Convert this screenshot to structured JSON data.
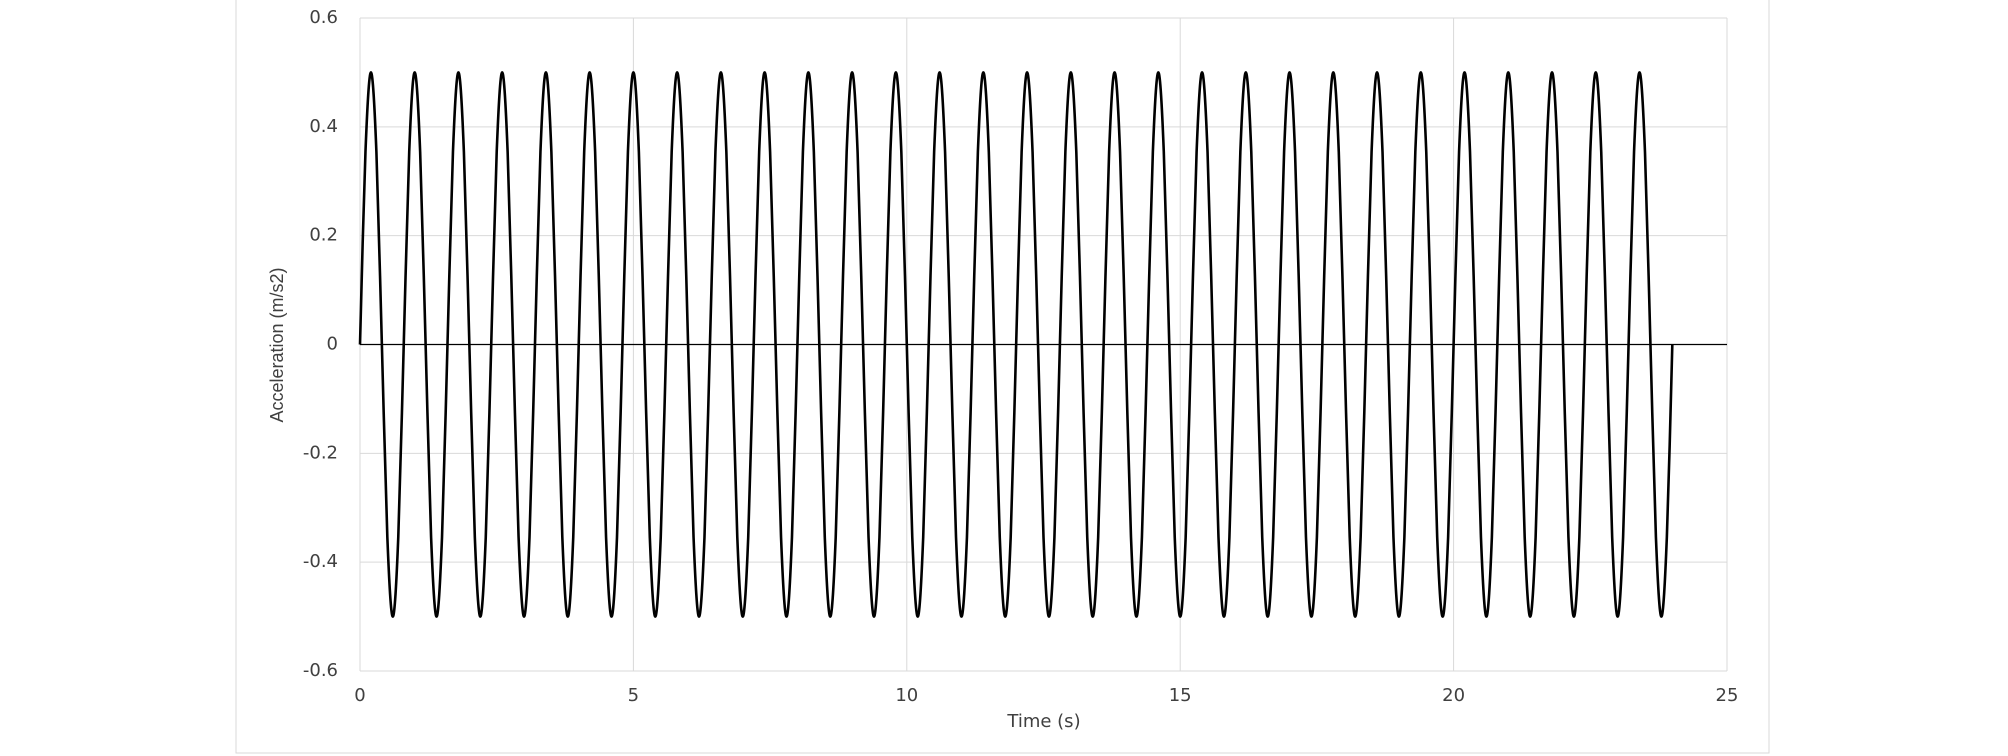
{
  "chart_data": {
    "type": "line",
    "x_label": "Time (s)",
    "y_label": "Acceleration (m/s2)",
    "xlim": [
      0,
      25
    ],
    "ylim": [
      -0.6,
      0.6
    ],
    "xticks": [
      0,
      5,
      10,
      15,
      20,
      25
    ],
    "yticks": [
      -0.6,
      -0.4,
      -0.2,
      0,
      0.2,
      0.4,
      0.6
    ],
    "grid": true,
    "color": "#000000",
    "x": [
      0,
      0.1,
      0.2,
      0.3,
      0.4,
      0.5,
      0.6,
      0.7,
      0.8,
      0.9,
      1,
      1.1,
      1.2,
      1.3,
      1.4,
      1.5,
      1.6,
      1.7,
      1.8,
      1.9,
      2,
      2.1,
      2.2,
      2.3,
      2.4,
      2.5,
      2.6,
      2.7,
      2.8,
      2.9,
      3,
      3.1,
      3.2,
      3.3,
      3.4,
      3.5,
      3.6,
      3.7,
      3.8,
      3.9,
      4,
      4.1,
      4.2,
      4.3,
      4.4,
      4.5,
      4.6,
      4.7,
      4.8,
      4.9,
      5,
      5.1,
      5.2,
      5.3,
      5.4,
      5.5,
      5.6,
      5.7,
      5.8,
      5.9,
      6,
      6.1,
      6.2,
      6.3,
      6.4,
      6.5,
      6.6,
      6.7,
      6.8,
      6.9,
      7,
      7.1,
      7.2,
      7.3,
      7.4,
      7.5,
      7.6,
      7.7,
      7.8,
      7.9,
      8,
      8.1,
      8.2,
      8.3,
      8.4,
      8.5,
      8.6,
      8.7,
      8.8,
      8.9,
      9,
      9.1,
      9.2,
      9.3,
      9.4,
      9.5,
      9.6,
      9.7,
      9.8,
      9.9,
      10,
      10.1,
      10.2,
      10.3,
      10.4,
      10.5,
      10.6,
      10.7,
      10.8,
      10.9,
      11,
      11.1,
      11.2,
      11.3,
      11.4,
      11.5,
      11.6,
      11.7,
      11.8,
      11.9,
      12,
      12.1,
      12.2,
      12.3,
      12.4,
      12.5,
      12.6,
      12.7,
      12.8,
      12.9,
      13,
      13.1,
      13.2,
      13.3,
      13.4,
      13.5,
      13.6,
      13.7,
      13.8,
      13.9,
      14,
      14.1,
      14.2,
      14.3,
      14.4,
      14.5,
      14.6,
      14.7,
      14.8,
      14.9,
      15,
      15.1,
      15.2,
      15.3,
      15.4,
      15.5,
      15.6,
      15.7,
      15.8,
      15.9,
      16,
      16.1,
      16.2,
      16.3,
      16.4,
      16.5,
      16.6,
      16.7,
      16.8,
      16.9,
      17,
      17.1,
      17.2,
      17.3,
      17.4,
      17.5,
      17.6,
      17.7,
      17.8,
      17.9,
      18,
      18.1,
      18.2,
      18.3,
      18.4,
      18.5,
      18.6,
      18.7,
      18.8,
      18.9,
      19,
      19.1,
      19.2,
      19.3,
      19.4,
      19.5,
      19.6,
      19.7,
      19.8,
      19.9,
      20,
      20.1,
      20.2,
      20.3,
      20.4,
      20.5,
      20.6,
      20.7,
      20.8,
      20.9,
      21,
      21.1,
      21.2,
      21.3,
      21.4,
      21.5,
      21.6,
      21.7,
      21.8,
      21.9,
      22,
      22.1,
      22.2,
      22.3,
      22.4,
      22.5,
      22.6,
      22.7,
      22.8,
      22.9,
      23,
      23.1,
      23.2,
      23.3,
      23.4,
      23.5,
      23.6,
      23.7,
      23.8,
      23.9,
      24
    ],
    "values": [
      0,
      0.354,
      0.5,
      0.354,
      0,
      -0.354,
      -0.5,
      -0.354,
      0,
      0.354,
      0.5,
      0.354,
      0,
      -0.354,
      -0.5,
      -0.354,
      0,
      0.354,
      0.5,
      0.354,
      0,
      -0.354,
      -0.5,
      -0.354,
      0,
      0.354,
      0.5,
      0.354,
      0,
      -0.354,
      -0.5,
      -0.354,
      0,
      0.354,
      0.5,
      0.354,
      0,
      -0.354,
      -0.5,
      -0.354,
      0,
      0.354,
      0.5,
      0.354,
      0,
      -0.354,
      -0.5,
      -0.354,
      0,
      0.354,
      0.5,
      0.354,
      0,
      -0.354,
      -0.5,
      -0.354,
      0,
      0.354,
      0.5,
      0.354,
      0,
      -0.354,
      -0.5,
      -0.354,
      0,
      0.354,
      0.5,
      0.354,
      0,
      -0.354,
      -0.5,
      -0.354,
      0,
      0.354,
      0.5,
      0.354,
      0,
      -0.354,
      -0.5,
      -0.354,
      0,
      0.354,
      0.5,
      0.354,
      0,
      -0.354,
      -0.5,
      -0.354,
      0,
      0.354,
      0.5,
      0.354,
      0,
      -0.354,
      -0.5,
      -0.354,
      0,
      0.354,
      0.5,
      0.354,
      0,
      -0.354,
      -0.5,
      -0.354,
      0,
      0.354,
      0.5,
      0.354,
      0,
      -0.354,
      -0.5,
      -0.354,
      0,
      0.354,
      0.5,
      0.354,
      0,
      -0.354,
      -0.5,
      -0.354,
      0,
      0.354,
      0.5,
      0.354,
      0,
      -0.354,
      -0.5,
      -0.354,
      0,
      0.354,
      0.5,
      0.354,
      0,
      -0.354,
      -0.5,
      -0.354,
      0,
      0.354,
      0.5,
      0.354,
      0,
      -0.354,
      -0.5,
      -0.354,
      0,
      0.354,
      0.5,
      0.354,
      0,
      -0.354,
      -0.5,
      -0.354,
      0,
      0.354,
      0.5,
      0.354,
      0,
      -0.354,
      -0.5,
      -0.354,
      0,
      0.354,
      0.5,
      0.354,
      0,
      -0.354,
      -0.5,
      -0.354,
      0,
      0.354,
      0.5,
      0.354,
      0,
      -0.354,
      -0.5,
      -0.354,
      0,
      0.354,
      0.5,
      0.354,
      0,
      -0.354,
      -0.5,
      -0.354,
      0,
      0.354,
      0.5,
      0.354,
      0,
      -0.354,
      -0.5,
      -0.354,
      0,
      0.354,
      0.5,
      0.354,
      0,
      -0.354,
      -0.5,
      -0.354,
      0,
      0.354,
      0.5,
      0.354,
      0,
      -0.354,
      -0.5,
      -0.354,
      0,
      0.354,
      0.5,
      0.354,
      0,
      -0.354,
      -0.5,
      -0.354,
      0,
      0.354,
      0.5,
      0.354,
      0,
      -0.354,
      -0.5,
      -0.354,
      0,
      0.354,
      0.5,
      0.354,
      0,
      -0.354,
      -0.5,
      -0.354,
      0,
      0.354,
      0.5,
      0.354,
      0,
      -0.354,
      -0.5,
      -0.354,
      0
    ]
  }
}
